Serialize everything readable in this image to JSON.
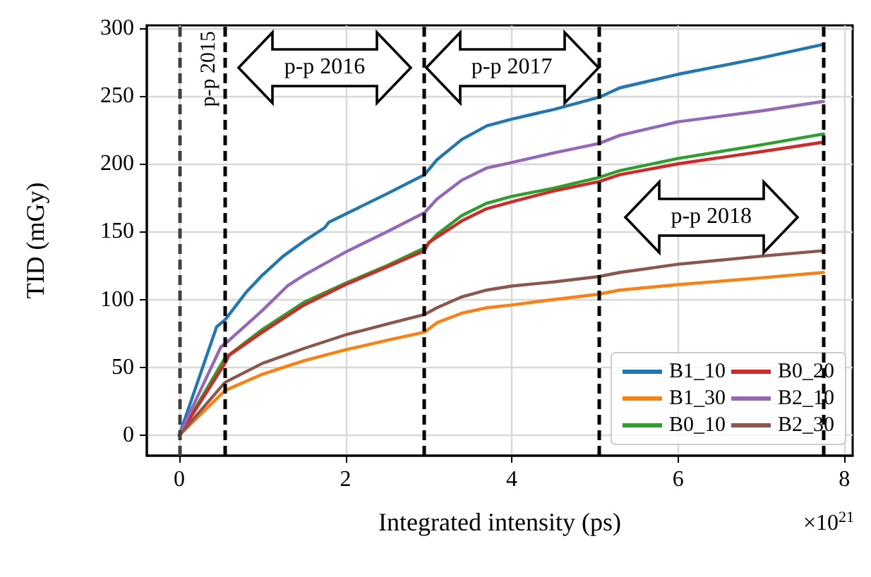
{
  "chart_data": {
    "type": "line",
    "xlabel": "Integrated intensity (ps)",
    "ylabel": "TID (mGy)",
    "xlim": [
      -0.39,
      8.1
    ],
    "xticks": [
      0,
      2,
      4,
      6,
      8
    ],
    "ylim": [
      -15,
      302
    ],
    "yticks": [
      0,
      50,
      100,
      150,
      200,
      250,
      300
    ],
    "grid": true,
    "legend": "bottom right",
    "line_style": "solid",
    "marker": "none",
    "series": [
      {
        "name": "B1_10",
        "color": "#1f77b4",
        "x": [
          0,
          0.45,
          0.55,
          0.8,
          1.0,
          1.25,
          1.5,
          1.75,
          1.8,
          2.0,
          2.5,
          2.95,
          3.1,
          3.4,
          3.7,
          4.0,
          4.5,
          5.05,
          5.3,
          6.0,
          7.0,
          7.75
        ],
        "values": [
          0,
          80,
          85,
          105,
          118,
          132,
          143,
          153,
          157,
          163,
          178,
          192,
          203,
          218,
          228,
          233,
          240,
          249,
          256,
          266,
          278,
          288
        ]
      },
      {
        "name": "B1_30",
        "color": "#ff7f0e",
        "x": [
          0,
          0.55,
          1.0,
          1.5,
          2.0,
          2.5,
          2.95,
          3.1,
          3.4,
          3.7,
          4.0,
          4.5,
          5.05,
          5.3,
          6.0,
          7.0,
          7.75
        ],
        "values": [
          0,
          33,
          45,
          55,
          63,
          70,
          76,
          83,
          90,
          94,
          96,
          100,
          104,
          107,
          111,
          116,
          120
        ]
      },
      {
        "name": "B0_10",
        "color": "#2ca02c",
        "x": [
          0,
          0.55,
          1.0,
          1.5,
          2.0,
          2.5,
          2.95,
          3.1,
          3.4,
          3.7,
          4.0,
          4.5,
          5.05,
          5.3,
          6.0,
          7.0,
          7.75
        ],
        "values": [
          0,
          57,
          78,
          98,
          112,
          125,
          138,
          148,
          162,
          171,
          176,
          182,
          190,
          195,
          204,
          214,
          222
        ]
      },
      {
        "name": "B0_20",
        "color": "#d62728",
        "x": [
          0,
          0.55,
          0.6,
          1.0,
          1.5,
          2.0,
          2.5,
          2.95,
          3.0,
          3.4,
          3.7,
          4.0,
          4.5,
          5.05,
          5.3,
          6.0,
          7.0,
          7.75
        ],
        "values": [
          0,
          53,
          59,
          76,
          96,
          111,
          124,
          136,
          142,
          158,
          167,
          172,
          180,
          187,
          192,
          200,
          209,
          216
        ]
      },
      {
        "name": "B2_10",
        "color": "#9467bd",
        "x": [
          0,
          0.5,
          0.6,
          1.0,
          1.3,
          1.5,
          2.0,
          2.5,
          2.95,
          3.1,
          3.4,
          3.7,
          4.0,
          4.5,
          5.05,
          5.3,
          6.0,
          7.0,
          7.75
        ],
        "values": [
          0,
          65,
          70,
          92,
          110,
          118,
          135,
          150,
          164,
          174,
          188,
          197,
          201,
          208,
          215,
          221,
          231,
          239,
          246
        ]
      },
      {
        "name": "B2_30",
        "color": "#8c564b",
        "x": [
          0,
          0.55,
          1.0,
          1.5,
          2.0,
          2.5,
          2.95,
          3.1,
          3.4,
          3.7,
          4.0,
          4.5,
          5.05,
          5.3,
          6.0,
          7.0,
          7.75
        ],
        "values": [
          0,
          39,
          53,
          64,
          74,
          82,
          89,
          94,
          102,
          107,
          110,
          113,
          117,
          120,
          126,
          132,
          136
        ]
      }
    ],
    "ref_lines": [
      {
        "axis": "x",
        "value": 0,
        "label": null,
        "color": "#404040",
        "line_style": "dashed"
      },
      {
        "axis": "x",
        "value": 0.55,
        "label": "p-p 2015",
        "color": "#000000",
        "line_style": "dashed"
      },
      {
        "axis": "x",
        "value": 2.95,
        "label": null,
        "color": "#000000",
        "line_style": "dashed"
      },
      {
        "axis": "x",
        "value": 5.05,
        "label": null,
        "color": "#000000",
        "line_style": "dashed"
      },
      {
        "axis": "x",
        "value": 7.75,
        "label": null,
        "color": "#000000",
        "line_style": "dashed"
      }
    ],
    "annotations": [
      "p-p 2016",
      "p-p 2017",
      "p-p 2018",
      "×10$^{21}$"
    ]
  }
}
